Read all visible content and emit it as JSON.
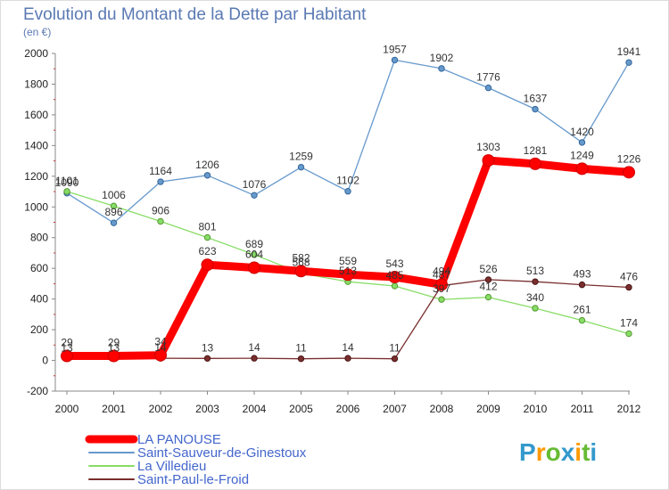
{
  "chart_data": {
    "type": "line",
    "title": "Evolution du Montant de la Dette par Habitant",
    "subtitle": "(en €)",
    "x": [
      "2000",
      "2001",
      "2002",
      "2003",
      "2004",
      "2005",
      "2006",
      "2007",
      "2008",
      "2009",
      "2010",
      "2011",
      "2012"
    ],
    "ylim": [
      -200,
      2000
    ],
    "yticks": [
      -200,
      0,
      200,
      400,
      600,
      800,
      1000,
      1200,
      1400,
      1600,
      1800,
      2000
    ],
    "grid": false,
    "legend_position": "bottom-left",
    "series": [
      {
        "name": "LA PANOUSE",
        "color": "#ff0000",
        "values": [
          29,
          29,
          34,
          623,
          604,
          582,
          559,
          543,
          494,
          1303,
          1281,
          1249,
          1226
        ]
      },
      {
        "name": "Saint-Sauveur-de-Ginestoux",
        "color": "#6699cc",
        "values": [
          1090,
          896,
          1164,
          1206,
          1076,
          1259,
          1102,
          1957,
          1902,
          1776,
          1637,
          1420,
          1941
        ]
      },
      {
        "name": "La Villedieu",
        "color": "#88dd66",
        "values": [
          1101,
          1006,
          906,
          801,
          689,
          568,
          513,
          485,
          397,
          412,
          340,
          261,
          174
        ]
      },
      {
        "name": "Saint-Paul-le-Froid",
        "color": "#7a2e2e",
        "values": [
          13,
          13,
          14,
          13,
          14,
          11,
          14,
          11,
          487,
          526,
          513,
          493,
          476
        ]
      }
    ]
  },
  "logo": {
    "letters": [
      "P",
      "r",
      "o",
      "x",
      "i",
      "t",
      "i"
    ],
    "colors": [
      "#3399cc",
      "#ff9900",
      "#66bb33",
      "#3399cc",
      "#ff9900",
      "#66bb33",
      "#3399cc"
    ]
  }
}
